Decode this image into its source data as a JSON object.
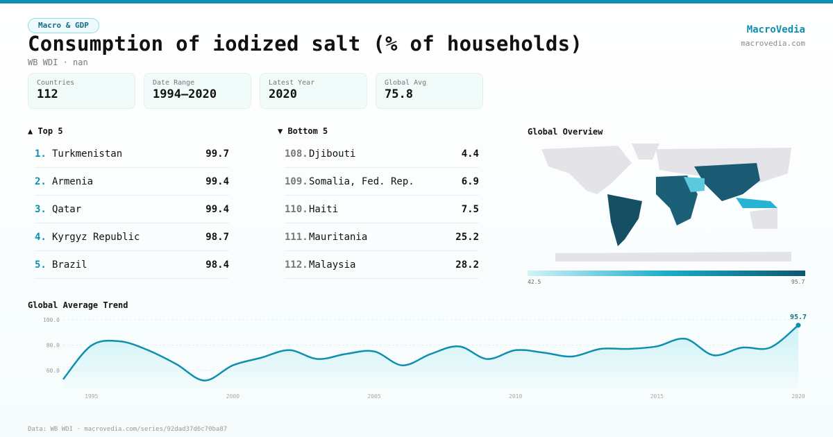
{
  "header": {
    "badge": "Macro & GDP",
    "title": "Consumption of iodized salt (% of households)",
    "subtitle": "WB WDI · nan",
    "brand": "MacroVedia",
    "brand_url": "macrovedia.com"
  },
  "cards": [
    {
      "label": "Countries",
      "value": "112"
    },
    {
      "label": "Date Range",
      "value": "1994–2020"
    },
    {
      "label": "Latest Year",
      "value": "2020"
    },
    {
      "label": "Global Avg",
      "value": "75.8"
    }
  ],
  "top5": {
    "title": "▲ Top 5",
    "items": [
      {
        "rank": "1.",
        "name": "Turkmenistan",
        "value": "99.7"
      },
      {
        "rank": "2.",
        "name": "Armenia",
        "value": "99.4"
      },
      {
        "rank": "3.",
        "name": "Qatar",
        "value": "99.4"
      },
      {
        "rank": "4.",
        "name": "Kyrgyz Republic",
        "value": "98.7"
      },
      {
        "rank": "5.",
        "name": "Brazil",
        "value": "98.4"
      }
    ]
  },
  "bottom5": {
    "title": "▼ Bottom 5",
    "items": [
      {
        "rank": "108.",
        "name": "Djibouti",
        "value": "4.4"
      },
      {
        "rank": "109.",
        "name": "Somalia, Fed. Rep.",
        "value": "6.9"
      },
      {
        "rank": "110.",
        "name": "Haiti",
        "value": "7.5"
      },
      {
        "rank": "111.",
        "name": "Mauritania",
        "value": "25.2"
      },
      {
        "rank": "112.",
        "name": "Malaysia",
        "value": "28.2"
      }
    ]
  },
  "map": {
    "title": "Global Overview",
    "scale_min": "42.5",
    "scale_max": "95.7",
    "colors": [
      "#d3f3f8",
      "#1aaccc",
      "#0e5670"
    ]
  },
  "footer": "Data: WB WDI · macrovedia.com/series/92dad37d6c70ba87",
  "chart_data": {
    "type": "area",
    "title": "Global Average Trend",
    "xlabel": "",
    "ylabel": "",
    "x": [
      1994,
      1995,
      1996,
      1997,
      1998,
      1999,
      2000,
      2001,
      2002,
      2003,
      2004,
      2005,
      2006,
      2007,
      2008,
      2009,
      2010,
      2011,
      2012,
      2013,
      2014,
      2015,
      2016,
      2017,
      2018,
      2019,
      2020
    ],
    "values": [
      53,
      79.7,
      83,
      76,
      65,
      52,
      64,
      70,
      76,
      69,
      73,
      75,
      64,
      73,
      79,
      69,
      76,
      74,
      71,
      77,
      77,
      79,
      85,
      72,
      78,
      78,
      95.7
    ],
    "yticks": [
      "60.0",
      "80.0",
      "100.0"
    ],
    "ytick_values": [
      60,
      80,
      100
    ],
    "xticks": [
      1995,
      2000,
      2005,
      2010,
      2015,
      2020
    ],
    "ylim": [
      45,
      100
    ],
    "xlim": [
      1994,
      2020
    ],
    "grid": true,
    "last_label": "95.7",
    "color": "#0e8fb0"
  }
}
